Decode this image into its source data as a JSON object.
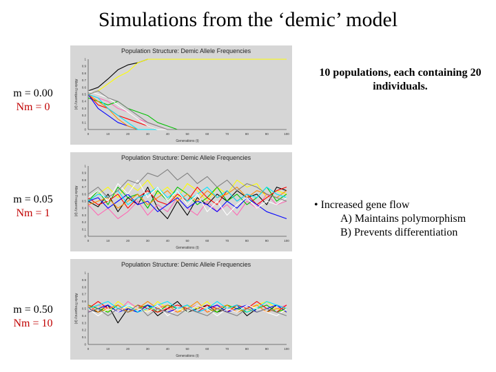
{
  "slide": {
    "title": "Simulations from the ‘demic’ model",
    "info_text": "10 populations, each containing 20 individuals.",
    "bullet": "• Increased gene flow",
    "sub_items": [
      "A) Maintains polymorphism",
      "B) Prevents differentiation"
    ]
  },
  "labels": [
    {
      "m": "m = 0.00",
      "nm": "Nm = 0"
    },
    {
      "m": "m = 0.05",
      "nm": "Nm = 1"
    },
    {
      "m": "m = 0.50",
      "nm": "Nm = 10"
    }
  ],
  "colors": [
    "#000000",
    "#ffff00",
    "#ff69b4",
    "#00c000",
    "#ff0000",
    "#0000ff",
    "#ff8c00",
    "#00e5ff",
    "#ffffff",
    "#808080"
  ],
  "chart_data": [
    {
      "type": "line",
      "title": "Population Structure: Demic Allele Frequencies",
      "xlabel": "Generations (t)",
      "ylabel": "Allele Frequency (p)",
      "xlim": [
        0,
        100
      ],
      "ylim": [
        0,
        1
      ],
      "x_ticks": [
        0,
        10,
        20,
        30,
        40,
        50,
        60,
        70,
        80,
        90,
        100
      ],
      "y_ticks": [
        0,
        0.1,
        0.2,
        0.3,
        0.4,
        0.5,
        0.6,
        0.7,
        0.8,
        0.9,
        1
      ],
      "grid": false,
      "x": [
        0,
        5,
        10,
        15,
        20,
        25,
        30,
        35,
        40,
        45,
        50,
        55,
        60,
        65,
        70,
        75,
        80,
        85,
        90,
        95,
        100
      ],
      "series": [
        {
          "values": [
            0.55,
            0.6,
            0.72,
            0.85,
            0.92,
            0.95,
            1,
            1,
            1,
            1,
            1,
            1,
            1,
            1,
            1,
            1,
            1,
            1,
            1,
            1,
            1
          ]
        },
        {
          "values": [
            0.5,
            0.55,
            0.65,
            0.75,
            0.82,
            0.95,
            1,
            1,
            1,
            1,
            1,
            1,
            1,
            1,
            1,
            1,
            1,
            1,
            1,
            1,
            1
          ]
        },
        {
          "values": [
            0.5,
            0.45,
            0.4,
            0.3,
            0.25,
            0.15,
            0.1,
            0.05,
            0,
            0,
            0,
            0,
            0,
            0,
            0,
            0,
            0,
            0,
            0,
            0,
            0
          ]
        },
        {
          "values": [
            0.45,
            0.4,
            0.35,
            0.4,
            0.3,
            0.25,
            0.2,
            0.1,
            0.05,
            0,
            0,
            0,
            0,
            0,
            0,
            0,
            0,
            0,
            0,
            0,
            0
          ]
        },
        {
          "values": [
            0.5,
            0.35,
            0.3,
            0.2,
            0.15,
            0.1,
            0.05,
            0,
            0,
            0,
            0,
            0,
            0,
            0,
            0,
            0,
            0,
            0,
            0,
            0,
            0
          ]
        },
        {
          "values": [
            0.5,
            0.3,
            0.2,
            0.1,
            0.05,
            0,
            0,
            0,
            0,
            0,
            0,
            0,
            0,
            0,
            0,
            0,
            0,
            0,
            0,
            0,
            0
          ]
        },
        {
          "values": [
            0.5,
            0.4,
            0.3,
            0.15,
            0.05,
            0,
            0,
            0,
            0,
            0,
            0,
            0,
            0,
            0,
            0,
            0,
            0,
            0,
            0,
            0,
            0
          ]
        },
        {
          "values": [
            0.5,
            0.45,
            0.3,
            0.2,
            0.1,
            0,
            0,
            0,
            0,
            0,
            0,
            0,
            0,
            0,
            0,
            0,
            0,
            0,
            0,
            0,
            0
          ]
        },
        {
          "values": [
            0.55,
            0.5,
            0.45,
            0.35,
            0.25,
            0.15,
            0.05,
            0,
            0,
            0,
            0,
            0,
            0,
            0,
            0,
            0,
            0,
            0,
            0,
            0,
            0
          ]
        },
        {
          "values": [
            0.5,
            0.55,
            0.45,
            0.4,
            0.3,
            0.2,
            0.1,
            0.05,
            0,
            0,
            0,
            0,
            0,
            0,
            0,
            0,
            0,
            0,
            0,
            0,
            0
          ]
        }
      ]
    },
    {
      "type": "line",
      "title": "Population Structure: Demic Allele Frequencies",
      "xlabel": "Generations (t)",
      "ylabel": "Allele Frequency (p)",
      "xlim": [
        0,
        100
      ],
      "ylim": [
        0,
        1
      ],
      "x_ticks": [
        0,
        10,
        20,
        30,
        40,
        50,
        60,
        70,
        80,
        90,
        100
      ],
      "y_ticks": [
        0,
        0.1,
        0.2,
        0.3,
        0.4,
        0.5,
        0.6,
        0.7,
        0.8,
        0.9,
        1
      ],
      "grid": false,
      "x": [
        0,
        5,
        10,
        15,
        20,
        25,
        30,
        35,
        40,
        45,
        50,
        55,
        60,
        65,
        70,
        75,
        80,
        85,
        90,
        95,
        100
      ],
      "series": [
        {
          "values": [
            0.5,
            0.42,
            0.6,
            0.35,
            0.55,
            0.45,
            0.7,
            0.4,
            0.25,
            0.5,
            0.3,
            0.55,
            0.45,
            0.6,
            0.5,
            0.65,
            0.55,
            0.6,
            0.45,
            0.7,
            0.65
          ]
        },
        {
          "values": [
            0.5,
            0.6,
            0.7,
            0.55,
            0.75,
            0.65,
            0.8,
            0.6,
            0.7,
            0.55,
            0.75,
            0.65,
            0.5,
            0.7,
            0.6,
            0.8,
            0.7,
            0.75,
            0.55,
            0.65,
            0.6
          ]
        },
        {
          "values": [
            0.45,
            0.3,
            0.4,
            0.25,
            0.35,
            0.5,
            0.3,
            0.45,
            0.35,
            0.55,
            0.4,
            0.3,
            0.5,
            0.35,
            0.45,
            0.3,
            0.5,
            0.4,
            0.6,
            0.45,
            0.5
          ]
        },
        {
          "values": [
            0.5,
            0.65,
            0.45,
            0.7,
            0.55,
            0.6,
            0.4,
            0.65,
            0.5,
            0.7,
            0.6,
            0.45,
            0.55,
            0.7,
            0.5,
            0.6,
            0.45,
            0.55,
            0.7,
            0.5,
            0.6
          ]
        },
        {
          "values": [
            0.55,
            0.45,
            0.5,
            0.6,
            0.4,
            0.55,
            0.65,
            0.5,
            0.45,
            0.6,
            0.5,
            0.7,
            0.55,
            0.45,
            0.65,
            0.5,
            0.6,
            0.45,
            0.55,
            0.65,
            0.7
          ]
        },
        {
          "values": [
            0.5,
            0.55,
            0.4,
            0.5,
            0.6,
            0.45,
            0.5,
            0.35,
            0.45,
            0.55,
            0.4,
            0.5,
            0.45,
            0.35,
            0.5,
            0.4,
            0.55,
            0.45,
            0.35,
            0.3,
            0.25
          ]
        },
        {
          "values": [
            0.45,
            0.5,
            0.55,
            0.4,
            0.5,
            0.6,
            0.45,
            0.55,
            0.65,
            0.5,
            0.6,
            0.5,
            0.65,
            0.55,
            0.6,
            0.7,
            0.55,
            0.65,
            0.6,
            0.55,
            0.65
          ]
        },
        {
          "values": [
            0.5,
            0.6,
            0.55,
            0.65,
            0.45,
            0.55,
            0.6,
            0.7,
            0.55,
            0.65,
            0.5,
            0.6,
            0.7,
            0.55,
            0.65,
            0.5,
            0.6,
            0.55,
            0.7,
            0.6,
            0.55
          ]
        },
        {
          "values": [
            0.55,
            0.65,
            0.5,
            0.75,
            0.6,
            0.8,
            0.55,
            0.7,
            0.5,
            0.65,
            0.45,
            0.6,
            0.35,
            0.5,
            0.3,
            0.45,
            0.55,
            0.4,
            0.5,
            0.45,
            0.55
          ]
        },
        {
          "values": [
            0.6,
            0.7,
            0.55,
            0.65,
            0.8,
            0.75,
            0.9,
            0.85,
            0.95,
            0.8,
            0.9,
            0.75,
            0.85,
            0.7,
            0.8,
            0.65,
            0.75,
            0.7,
            0.6,
            0.55,
            0.5
          ]
        }
      ]
    },
    {
      "type": "line",
      "title": "Population Structure: Demic Allele Frequencies",
      "xlabel": "Generations (t)",
      "ylabel": "Allele Frequency (p)",
      "xlim": [
        0,
        100
      ],
      "ylim": [
        0,
        1
      ],
      "x_ticks": [
        0,
        10,
        20,
        30,
        40,
        50,
        60,
        70,
        80,
        90,
        100
      ],
      "y_ticks": [
        0,
        0.1,
        0.2,
        0.3,
        0.4,
        0.5,
        0.6,
        0.7,
        0.8,
        0.9,
        1
      ],
      "grid": false,
      "x": [
        0,
        5,
        10,
        15,
        20,
        25,
        30,
        35,
        40,
        45,
        50,
        55,
        60,
        65,
        70,
        75,
        80,
        85,
        90,
        95,
        100
      ],
      "series": [
        {
          "values": [
            0.5,
            0.45,
            0.55,
            0.3,
            0.5,
            0.45,
            0.55,
            0.4,
            0.5,
            0.6,
            0.45,
            0.5,
            0.55,
            0.45,
            0.5,
            0.55,
            0.4,
            0.5,
            0.45,
            0.55,
            0.5
          ]
        },
        {
          "values": [
            0.5,
            0.55,
            0.45,
            0.6,
            0.5,
            0.55,
            0.45,
            0.6,
            0.5,
            0.45,
            0.55,
            0.5,
            0.6,
            0.45,
            0.55,
            0.5,
            0.45,
            0.55,
            0.6,
            0.5,
            0.45
          ]
        },
        {
          "values": [
            0.45,
            0.55,
            0.5,
            0.45,
            0.6,
            0.5,
            0.45,
            0.55,
            0.5,
            0.45,
            0.5,
            0.55,
            0.45,
            0.55,
            0.5,
            0.45,
            0.55,
            0.5,
            0.45,
            0.5,
            0.55
          ]
        },
        {
          "values": [
            0.55,
            0.5,
            0.45,
            0.55,
            0.45,
            0.5,
            0.55,
            0.45,
            0.55,
            0.5,
            0.45,
            0.55,
            0.5,
            0.45,
            0.55,
            0.5,
            0.45,
            0.5,
            0.55,
            0.45,
            0.5
          ]
        },
        {
          "values": [
            0.5,
            0.6,
            0.5,
            0.55,
            0.45,
            0.55,
            0.5,
            0.45,
            0.5,
            0.55,
            0.5,
            0.45,
            0.55,
            0.5,
            0.45,
            0.55,
            0.5,
            0.6,
            0.5,
            0.45,
            0.55
          ]
        },
        {
          "values": [
            0.45,
            0.5,
            0.55,
            0.45,
            0.5,
            0.45,
            0.55,
            0.5,
            0.45,
            0.5,
            0.55,
            0.45,
            0.5,
            0.55,
            0.45,
            0.5,
            0.55,
            0.45,
            0.5,
            0.55,
            0.45
          ]
        },
        {
          "values": [
            0.55,
            0.45,
            0.5,
            0.55,
            0.45,
            0.5,
            0.6,
            0.5,
            0.55,
            0.45,
            0.5,
            0.6,
            0.45,
            0.5,
            0.55,
            0.45,
            0.5,
            0.55,
            0.45,
            0.5,
            0.5
          ]
        },
        {
          "values": [
            0.5,
            0.55,
            0.6,
            0.5,
            0.55,
            0.45,
            0.5,
            0.55,
            0.6,
            0.5,
            0.55,
            0.45,
            0.5,
            0.6,
            0.5,
            0.55,
            0.45,
            0.5,
            0.6,
            0.55,
            0.5
          ]
        },
        {
          "values": [
            0.5,
            0.4,
            0.5,
            0.45,
            0.55,
            0.5,
            0.45,
            0.55,
            0.4,
            0.5,
            0.45,
            0.55,
            0.5,
            0.4,
            0.5,
            0.45,
            0.55,
            0.5,
            0.45,
            0.4,
            0.5
          ]
        },
        {
          "values": [
            0.45,
            0.5,
            0.4,
            0.5,
            0.45,
            0.55,
            0.4,
            0.5,
            0.45,
            0.4,
            0.5,
            0.45,
            0.4,
            0.5,
            0.45,
            0.4,
            0.5,
            0.45,
            0.5,
            0.45,
            0.4
          ]
        }
      ]
    }
  ]
}
